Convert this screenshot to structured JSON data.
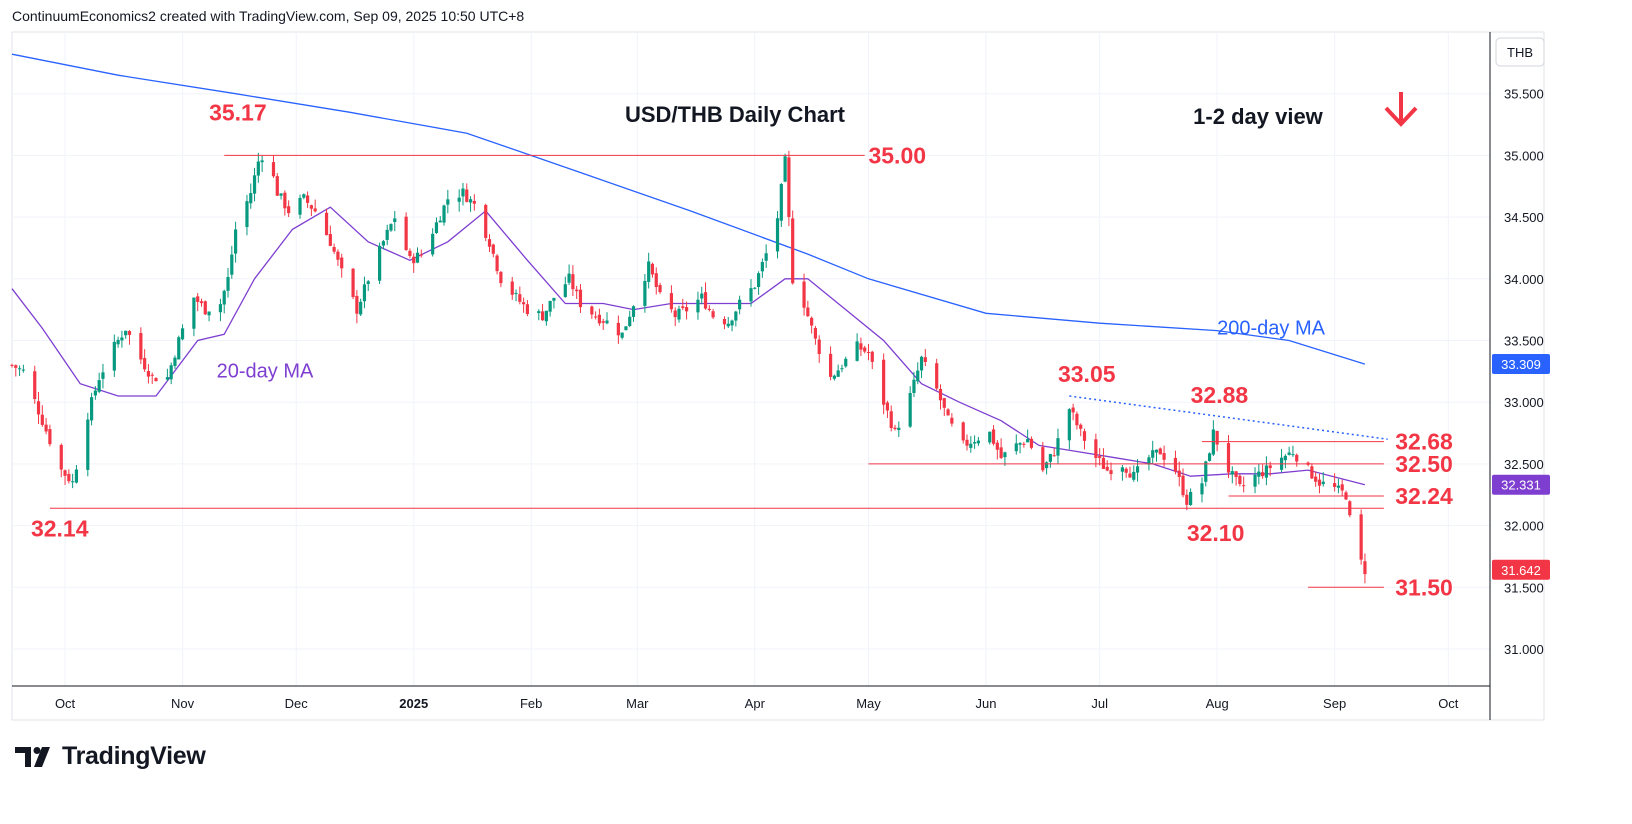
{
  "header": {
    "credit": "ContinuumEconomics2 created with TradingView.com, Sep 09, 2025 10:50 UTC+8"
  },
  "brand": {
    "name": "TradingView",
    "icon": "tradingview-logo-icon"
  },
  "colors": {
    "up": "#089981",
    "down": "#f23645",
    "ma200": "#2962ff",
    "ma20": "#7e3fd1",
    "level": "#f23645",
    "text": "#131722"
  },
  "chart_data": {
    "type": "candlestick",
    "title": "USD/THB Daily Chart",
    "view_label": "1-2 day view",
    "view_icon": "arrow-down-icon",
    "currency_label": "THB",
    "ylim": [
      30.7,
      36.0
    ],
    "yticks": [
      "31.000",
      "31.500",
      "32.000",
      "32.500",
      "33.000",
      "33.500",
      "34.000",
      "34.500",
      "35.000",
      "35.500"
    ],
    "xlim": [
      "2024-09-17",
      "2025-10-12"
    ],
    "xticks": [
      {
        "date": "2024-10-01",
        "label": "Oct"
      },
      {
        "date": "2024-11-01",
        "label": "Nov"
      },
      {
        "date": "2024-12-01",
        "label": "Dec"
      },
      {
        "date": "2025-01-01",
        "label": "2025"
      },
      {
        "date": "2025-02-01",
        "label": "Feb"
      },
      {
        "date": "2025-03-01",
        "label": "Mar"
      },
      {
        "date": "2025-04-01",
        "label": "Apr"
      },
      {
        "date": "2025-05-01",
        "label": "May"
      },
      {
        "date": "2025-06-01",
        "label": "Jun"
      },
      {
        "date": "2025-07-01",
        "label": "Jul"
      },
      {
        "date": "2025-08-01",
        "label": "Aug"
      },
      {
        "date": "2025-09-01",
        "label": "Sep"
      },
      {
        "date": "2025-10-01",
        "label": "Oct"
      }
    ],
    "price_badges": [
      {
        "label": "33.309",
        "value": 33.309,
        "color": "#2962ff"
      },
      {
        "label": "32.331",
        "value": 32.331,
        "color": "#7e3fd1"
      },
      {
        "label": "31.642",
        "value": 31.642,
        "color": "#f23645"
      }
    ],
    "close_path": [
      [
        "2024-09-17",
        33.3
      ],
      [
        "2024-09-20",
        33.25
      ],
      [
        "2024-09-25",
        32.85
      ],
      [
        "2024-09-30",
        32.45
      ],
      [
        "2024-10-03",
        32.35
      ],
      [
        "2024-10-07",
        32.9
      ],
      [
        "2024-10-10",
        33.2
      ],
      [
        "2024-10-14",
        33.45
      ],
      [
        "2024-10-17",
        33.6
      ],
      [
        "2024-10-21",
        33.35
      ],
      [
        "2024-10-24",
        33.2
      ],
      [
        "2024-10-28",
        33.2
      ],
      [
        "2024-10-31",
        33.5
      ],
      [
        "2024-11-04",
        33.85
      ],
      [
        "2024-11-07",
        33.75
      ],
      [
        "2024-11-11",
        33.8
      ],
      [
        "2024-11-13",
        34.0
      ],
      [
        "2024-11-15",
        34.4
      ],
      [
        "2024-11-19",
        34.7
      ],
      [
        "2024-11-21",
        34.95
      ],
      [
        "2024-11-23",
        35.05
      ],
      [
        "2024-11-26",
        34.7
      ],
      [
        "2024-11-29",
        34.55
      ],
      [
        "2024-12-03",
        34.65
      ],
      [
        "2024-12-06",
        34.55
      ],
      [
        "2024-12-10",
        34.3
      ],
      [
        "2024-12-13",
        34.05
      ],
      [
        "2024-12-17",
        33.75
      ],
      [
        "2024-12-20",
        34.0
      ],
      [
        "2024-12-24",
        34.3
      ],
      [
        "2024-12-27",
        34.5
      ],
      [
        "2024-12-31",
        34.15
      ],
      [
        "2025-01-03",
        34.2
      ],
      [
        "2025-01-07",
        34.45
      ],
      [
        "2025-01-10",
        34.65
      ],
      [
        "2025-01-14",
        34.7
      ],
      [
        "2025-01-17",
        34.6
      ],
      [
        "2025-01-21",
        34.3
      ],
      [
        "2025-01-24",
        34.0
      ],
      [
        "2025-01-28",
        33.85
      ],
      [
        "2025-01-31",
        33.75
      ],
      [
        "2025-02-04",
        33.7
      ],
      [
        "2025-02-07",
        33.85
      ],
      [
        "2025-02-11",
        34.0
      ],
      [
        "2025-02-14",
        33.8
      ],
      [
        "2025-02-18",
        33.7
      ],
      [
        "2025-02-21",
        33.65
      ],
      [
        "2025-02-25",
        33.55
      ],
      [
        "2025-02-28",
        33.8
      ],
      [
        "2025-03-04",
        34.1
      ],
      [
        "2025-03-07",
        33.85
      ],
      [
        "2025-03-11",
        33.7
      ],
      [
        "2025-03-14",
        33.75
      ],
      [
        "2025-03-18",
        33.85
      ],
      [
        "2025-03-21",
        33.7
      ],
      [
        "2025-03-25",
        33.65
      ],
      [
        "2025-03-28",
        33.8
      ],
      [
        "2025-04-01",
        33.95
      ],
      [
        "2025-04-04",
        34.2
      ],
      [
        "2025-04-07",
        34.5
      ],
      [
        "2025-04-09",
        34.95
      ],
      [
        "2025-04-11",
        34.0
      ],
      [
        "2025-04-14",
        33.8
      ],
      [
        "2025-04-17",
        33.5
      ],
      [
        "2025-04-21",
        33.2
      ],
      [
        "2025-04-24",
        33.3
      ],
      [
        "2025-04-28",
        33.45
      ],
      [
        "2025-05-01",
        33.4
      ],
      [
        "2025-05-05",
        33.0
      ],
      [
        "2025-05-08",
        32.75
      ],
      [
        "2025-05-12",
        33.05
      ],
      [
        "2025-05-15",
        33.35
      ],
      [
        "2025-05-19",
        33.1
      ],
      [
        "2025-05-22",
        32.85
      ],
      [
        "2025-05-26",
        32.65
      ],
      [
        "2025-05-29",
        32.7
      ],
      [
        "2025-06-02",
        32.75
      ],
      [
        "2025-06-05",
        32.55
      ],
      [
        "2025-06-09",
        32.65
      ],
      [
        "2025-06-12",
        32.7
      ],
      [
        "2025-06-16",
        32.45
      ],
      [
        "2025-06-19",
        32.6
      ],
      [
        "2025-06-23",
        32.95
      ],
      [
        "2025-06-26",
        32.75
      ],
      [
        "2025-06-30",
        32.55
      ],
      [
        "2025-07-03",
        32.45
      ],
      [
        "2025-07-07",
        32.5
      ],
      [
        "2025-07-10",
        32.4
      ],
      [
        "2025-07-14",
        32.55
      ],
      [
        "2025-07-17",
        32.6
      ],
      [
        "2025-07-21",
        32.45
      ],
      [
        "2025-07-24",
        32.2
      ],
      [
        "2025-07-28",
        32.35
      ],
      [
        "2025-07-31",
        32.75
      ],
      [
        "2025-08-04",
        32.45
      ],
      [
        "2025-08-07",
        32.3
      ],
      [
        "2025-08-11",
        32.4
      ],
      [
        "2025-08-14",
        32.45
      ],
      [
        "2025-08-18",
        32.55
      ],
      [
        "2025-08-21",
        32.6
      ],
      [
        "2025-08-25",
        32.45
      ],
      [
        "2025-08-28",
        32.35
      ],
      [
        "2025-09-01",
        32.3
      ],
      [
        "2025-09-04",
        32.25
      ],
      [
        "2025-09-05",
        32.05
      ],
      [
        "2025-09-08",
        31.7
      ],
      [
        "2025-09-09",
        31.64
      ]
    ],
    "ma200": [
      [
        "2024-09-17",
        35.82
      ],
      [
        "2024-10-15",
        35.65
      ],
      [
        "2024-11-15",
        35.5
      ],
      [
        "2024-12-15",
        35.35
      ],
      [
        "2025-01-15",
        35.18
      ],
      [
        "2025-02-15",
        34.85
      ],
      [
        "2025-03-15",
        34.55
      ],
      [
        "2025-04-15",
        34.2
      ],
      [
        "2025-05-01",
        34.0
      ],
      [
        "2025-06-01",
        33.72
      ],
      [
        "2025-07-01",
        33.64
      ],
      [
        "2025-08-01",
        33.58
      ],
      [
        "2025-08-20",
        33.5
      ],
      [
        "2025-09-09",
        33.309
      ]
    ],
    "ma20": [
      [
        "2024-09-17",
        33.92
      ],
      [
        "2024-09-25",
        33.6
      ],
      [
        "2024-10-05",
        33.15
      ],
      [
        "2024-10-15",
        33.05
      ],
      [
        "2024-10-25",
        33.05
      ],
      [
        "2024-11-05",
        33.5
      ],
      [
        "2024-11-12",
        33.55
      ],
      [
        "2024-11-20",
        34.0
      ],
      [
        "2024-11-30",
        34.4
      ],
      [
        "2024-12-10",
        34.58
      ],
      [
        "2024-12-20",
        34.3
      ],
      [
        "2024-12-31",
        34.15
      ],
      [
        "2025-01-10",
        34.3
      ],
      [
        "2025-01-20",
        34.55
      ],
      [
        "2025-01-31",
        34.15
      ],
      [
        "2025-02-10",
        33.8
      ],
      [
        "2025-02-20",
        33.8
      ],
      [
        "2025-02-28",
        33.75
      ],
      [
        "2025-03-10",
        33.8
      ],
      [
        "2025-03-20",
        33.8
      ],
      [
        "2025-03-31",
        33.8
      ],
      [
        "2025-04-09",
        34.0
      ],
      [
        "2025-04-15",
        34.0
      ],
      [
        "2025-04-25",
        33.75
      ],
      [
        "2025-05-05",
        33.5
      ],
      [
        "2025-05-15",
        33.15
      ],
      [
        "2025-05-25",
        33.0
      ],
      [
        "2025-06-05",
        32.85
      ],
      [
        "2025-06-15",
        32.65
      ],
      [
        "2025-06-25",
        32.6
      ],
      [
        "2025-07-05",
        32.55
      ],
      [
        "2025-07-15",
        32.5
      ],
      [
        "2025-07-25",
        32.4
      ],
      [
        "2025-08-05",
        32.42
      ],
      [
        "2025-08-15",
        32.42
      ],
      [
        "2025-08-25",
        32.45
      ],
      [
        "2025-09-09",
        32.331
      ]
    ],
    "ma_labels": [
      {
        "text": "200-day MA",
        "date": "2025-08-01",
        "value": 33.55,
        "color": "#2962ff"
      },
      {
        "text": "20-day MA",
        "date": "2024-11-10",
        "value": 33.2,
        "color": "#7e3fd1"
      }
    ],
    "levels": [
      {
        "label": "35.17",
        "value": 35.17,
        "line": null,
        "label_at": [
          "2024-11-08",
          35.17
        ]
      },
      {
        "label": "35.00",
        "value": 35.0,
        "line": [
          "2024-11-12",
          "2025-04-30"
        ],
        "label_at": [
          "2025-05-01",
          35.0
        ]
      },
      {
        "label": "33.05",
        "value": 33.05,
        "line": null,
        "label_at": [
          "2025-06-20",
          33.05
        ]
      },
      {
        "label": "32.88",
        "value": 32.88,
        "line": null,
        "label_at": [
          "2025-07-25",
          32.88
        ]
      },
      {
        "label": "32.68",
        "value": 32.68,
        "line": [
          "2025-07-28",
          "2025-09-14"
        ],
        "label_at": [
          "2025-09-17",
          32.68
        ]
      },
      {
        "label": "32.50",
        "value": 32.5,
        "line": [
          "2025-05-01",
          "2025-09-14"
        ],
        "label_at": [
          "2025-09-17",
          32.5
        ]
      },
      {
        "label": "32.24",
        "value": 32.24,
        "line": [
          "2025-08-04",
          "2025-09-14"
        ],
        "label_at": [
          "2025-09-17",
          32.24
        ]
      },
      {
        "label": "32.14",
        "value": 32.14,
        "line": [
          "2024-09-27",
          "2025-09-14"
        ],
        "label_at": [
          "2024-09-22",
          32.14
        ]
      },
      {
        "label": "32.10",
        "value": 32.1,
        "line": null,
        "label_at": [
          "2025-07-24",
          32.1
        ]
      },
      {
        "label": "31.50",
        "value": 31.5,
        "line": [
          "2025-08-25",
          "2025-09-14"
        ],
        "label_at": [
          "2025-09-17",
          31.5
        ]
      }
    ],
    "trendline": {
      "from": [
        "2025-06-23",
        33.05
      ],
      "to": [
        "2025-09-15",
        32.7
      ]
    },
    "grid": true
  }
}
